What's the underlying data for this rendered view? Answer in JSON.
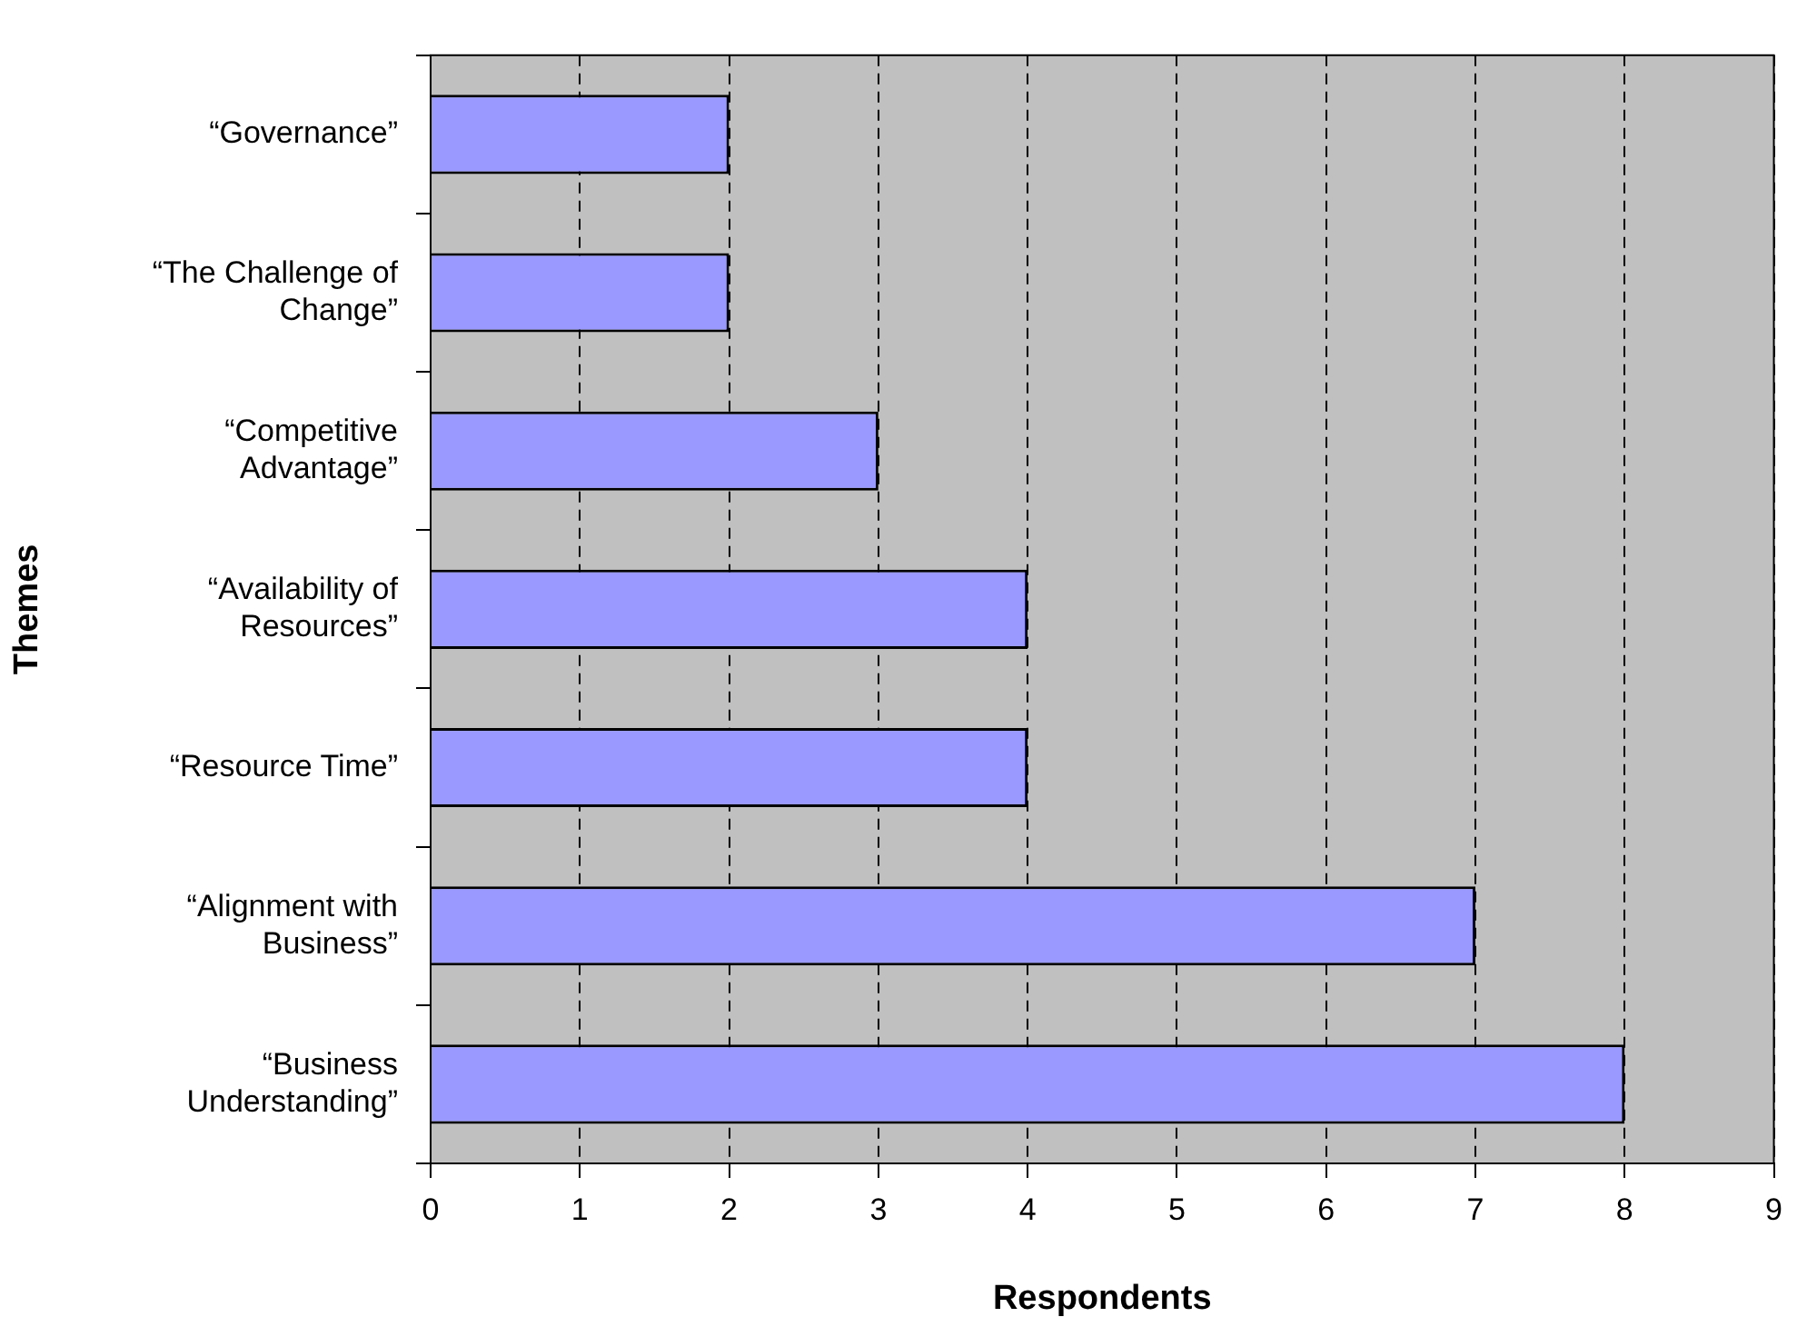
{
  "chart_data": {
    "type": "bar",
    "orientation": "horizontal",
    "xlabel": "Respondents",
    "ylabel": "Themes",
    "categories": [
      "“Governance”",
      "“The Challenge of Change”",
      "“Competitive Advantage”",
      "“Availability of Resources”",
      "“Resource Time”",
      "“Alignment with Business”",
      "“Business Understanding”"
    ],
    "values": [
      2,
      2,
      3,
      4,
      4,
      7,
      8
    ],
    "color": "#9999ff",
    "xlim": [
      0,
      9
    ],
    "xticks": [
      0,
      1,
      2,
      3,
      4,
      5,
      6,
      7,
      8,
      9
    ],
    "grid": "x",
    "legend": false
  }
}
